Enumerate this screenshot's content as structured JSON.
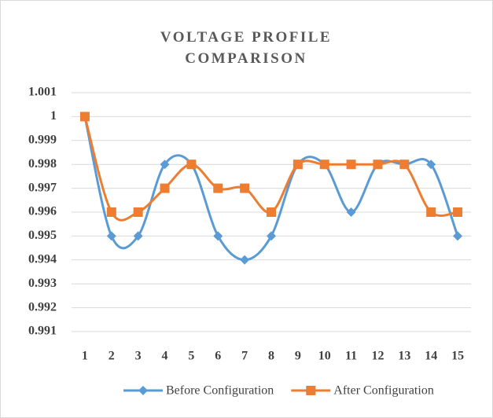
{
  "chart_data": {
    "type": "line",
    "title": "VOLTAGE PROFILE COMPARISON",
    "categories": [
      "1",
      "2",
      "3",
      "4",
      "5",
      "6",
      "7",
      "8",
      "9",
      "10",
      "11",
      "12",
      "13",
      "14",
      "15"
    ],
    "series": [
      {
        "name": "Before Configuration",
        "color": "#5b9bd5",
        "marker": "diamond",
        "values": [
          1,
          0.995,
          0.995,
          0.998,
          0.998,
          0.995,
          0.994,
          0.995,
          0.998,
          0.998,
          0.996,
          0.998,
          0.998,
          0.998,
          0.995
        ]
      },
      {
        "name": "After Configuration",
        "color": "#ed7d31",
        "marker": "square",
        "values": [
          1,
          0.996,
          0.996,
          0.997,
          0.998,
          0.997,
          0.997,
          0.996,
          0.998,
          0.998,
          0.998,
          0.998,
          0.998,
          0.996,
          0.996
        ]
      }
    ],
    "ylim": [
      0.991,
      1.001
    ],
    "yticks": [
      0.991,
      0.992,
      0.993,
      0.994,
      0.995,
      0.996,
      0.997,
      0.998,
      0.999,
      1,
      1.001
    ],
    "grid": true,
    "smooth": true,
    "legend": "bottom"
  }
}
